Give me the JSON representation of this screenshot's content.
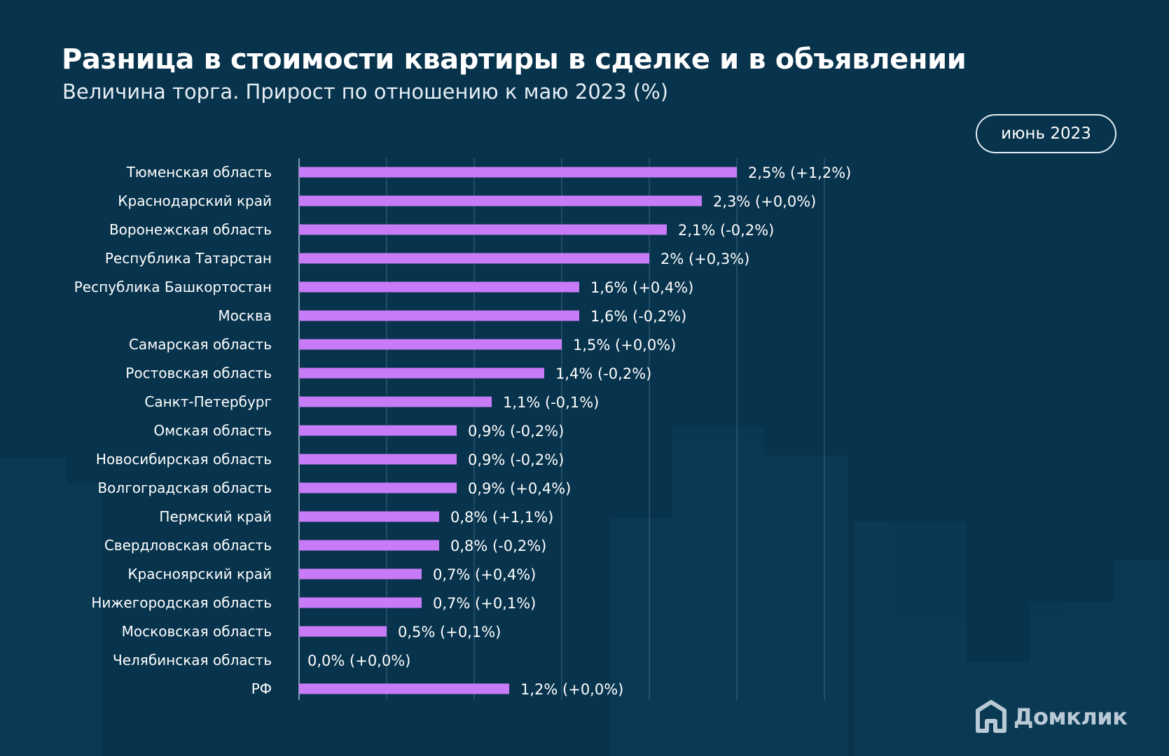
{
  "header": {
    "title": "Разница в стоимости квартиры в сделке и в объявлении",
    "subtitle": "Величина торга. Прирост по отношению к маю 2023 (%)",
    "period_label": "июнь 2023"
  },
  "brand": {
    "logo_text": "Домклик",
    "logo_icon": "home-icon"
  },
  "colors": {
    "background": "#07334c",
    "bar_top": "#7a46f0",
    "bar_bottom": "#c77bf7",
    "gridline": "#3d6680",
    "text": "#ffffff"
  },
  "chart_data": {
    "type": "bar",
    "orientation": "horizontal",
    "title": "Разница в стоимости квартиры в сделке и в объявлении",
    "subtitle": "Величина торга. Прирост по отношению к маю 2023 (%)",
    "xlim": [
      0,
      3
    ],
    "grid": true,
    "categories": [
      "Тюменская область",
      "Краснодарский край",
      "Воронежская область",
      "Республика Татарстан",
      "Республика Башкортостан",
      "Москва",
      "Самарская область",
      "Ростовская область",
      "Санкт-Петербург",
      "Омская область",
      "Новосибирская область",
      "Волгоградская область",
      "Пермский край",
      "Свердловская область",
      "Красноярский край",
      "Нижегородская область",
      "Московская область",
      "Челябинская область",
      "РФ"
    ],
    "values": [
      2.5,
      2.3,
      2.1,
      2.0,
      1.6,
      1.6,
      1.5,
      1.4,
      1.1,
      0.9,
      0.9,
      0.9,
      0.8,
      0.8,
      0.7,
      0.7,
      0.5,
      0.0,
      1.2
    ],
    "labels": [
      "2,5% (+1,2%)",
      "2,3% (+0,0%)",
      "2,1% (-0,2%)",
      "2% (+0,3%)",
      "1,6% (+0,4%)",
      "1,6% (-0,2%)",
      "1,5% (+0,0%)",
      "1,4% (-0,2%)",
      "1,1% (-0,1%)",
      "0,9% (-0,2%)",
      "0,9% (-0,2%)",
      "0,9% (+0,4%)",
      "0,8% (+1,1%)",
      "0,8% (-0,2%)",
      "0,7% (+0,4%)",
      "0,7% (+0,1%)",
      "0,5% (+0,1%)",
      "0,0% (+0,0%)",
      "1,2% (+0,0%)"
    ]
  }
}
